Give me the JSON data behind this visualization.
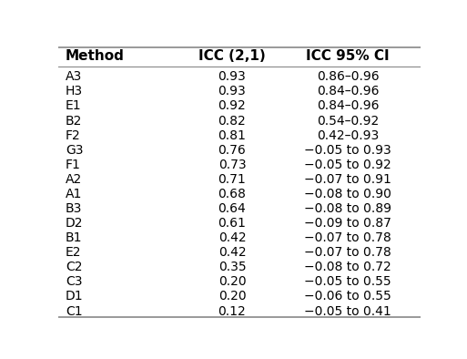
{
  "col_headers": [
    "Method",
    "ICC (2,1)",
    "ICC 95% CI"
  ],
  "rows": [
    [
      "A3",
      "0.93",
      "0.86–0.96"
    ],
    [
      "H3",
      "0.93",
      "0.84–0.96"
    ],
    [
      "E1",
      "0.92",
      "0.84–0.96"
    ],
    [
      "B2",
      "0.82",
      "0.54–0.92"
    ],
    [
      "F2",
      "0.81",
      "0.42–0.93"
    ],
    [
      "G3",
      "0.76",
      "−0.05 to 0.93"
    ],
    [
      "F1",
      "0.73",
      "−0.05 to 0.92"
    ],
    [
      "A2",
      "0.71",
      "−0.07 to 0.91"
    ],
    [
      "A1",
      "0.68",
      "−0.08 to 0.90"
    ],
    [
      "B3",
      "0.64",
      "−0.08 to 0.89"
    ],
    [
      "D2",
      "0.61",
      "−0.09 to 0.87"
    ],
    [
      "B1",
      "0.42",
      "−0.07 to 0.78"
    ],
    [
      "E2",
      "0.42",
      "−0.07 to 0.78"
    ],
    [
      "C2",
      "0.35",
      "−0.08 to 0.72"
    ],
    [
      "C3",
      "0.20",
      "−0.05 to 0.55"
    ],
    [
      "D1",
      "0.20",
      "−0.06 to 0.55"
    ],
    [
      "C1",
      "0.12",
      "−0.05 to 0.41"
    ]
  ],
  "col_aligns": [
    "left",
    "center",
    "center"
  ],
  "header_fontsize": 11,
  "cell_fontsize": 10,
  "background_color": "#ffffff",
  "line_color": "#888888",
  "text_color": "#000000"
}
